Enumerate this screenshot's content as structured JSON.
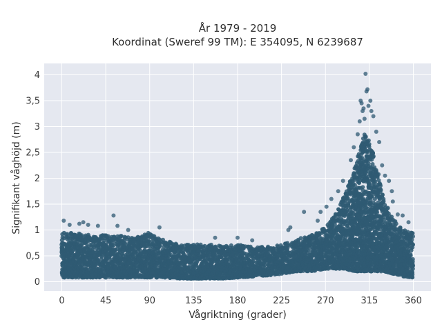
{
  "chart_data": {
    "type": "scatter",
    "title_lines": [
      "År 1979 - 2019",
      "Koordinat (Sweref 99 TM): E 354095, N 6239687"
    ],
    "xlabel": "Vågriktning (grader)",
    "ylabel": "Signifikant våghöjd (m)",
    "xlim": [
      -18,
      378
    ],
    "ylim": [
      -0.18,
      4.22
    ],
    "x_ticks": [
      0,
      45,
      90,
      135,
      180,
      225,
      270,
      315,
      360
    ],
    "x_tick_labels": [
      "0",
      "45",
      "90",
      "135",
      "180",
      "225",
      "270",
      "315",
      "360"
    ],
    "y_ticks": [
      0,
      0.5,
      1,
      1.5,
      2,
      2.5,
      3,
      3.5,
      4
    ],
    "y_tick_labels": [
      "0",
      "0,5",
      "1",
      "1,5",
      "2",
      "2,5",
      "3",
      "3,5",
      "4"
    ],
    "grid": true,
    "colors": {
      "marker": "#2f5a73",
      "plot_bg": "#e5e8f0",
      "grid": "#ffffff"
    },
    "envelope": {
      "x": [
        0,
        15,
        30,
        45,
        60,
        75,
        90,
        105,
        120,
        135,
        150,
        165,
        180,
        195,
        210,
        225,
        240,
        255,
        270,
        280,
        290,
        300,
        305,
        310,
        315,
        320,
        325,
        330,
        340,
        350,
        360
      ],
      "upper": [
        0.95,
        0.95,
        0.9,
        0.9,
        0.9,
        0.85,
        0.95,
        0.8,
        0.72,
        0.72,
        0.72,
        0.7,
        0.72,
        0.68,
        0.68,
        0.72,
        0.82,
        0.9,
        1.05,
        1.3,
        1.7,
        2.2,
        2.6,
        2.85,
        2.75,
        2.4,
        2.0,
        1.6,
        1.2,
        1.0,
        0.95
      ],
      "lower": [
        0.08,
        0.08,
        0.08,
        0.08,
        0.08,
        0.08,
        0.08,
        0.08,
        0.06,
        0.06,
        0.06,
        0.06,
        0.08,
        0.1,
        0.12,
        0.15,
        0.2,
        0.2,
        0.25,
        0.25,
        0.25,
        0.2,
        0.2,
        0.2,
        0.2,
        0.2,
        0.2,
        0.2,
        0.15,
        0.1,
        0.08
      ]
    },
    "outliers": [
      {
        "x": 2,
        "y": 1.18
      },
      {
        "x": 8,
        "y": 1.1
      },
      {
        "x": 18,
        "y": 1.12
      },
      {
        "x": 22,
        "y": 1.15
      },
      {
        "x": 27,
        "y": 1.1
      },
      {
        "x": 37,
        "y": 1.08
      },
      {
        "x": 53,
        "y": 1.28
      },
      {
        "x": 57,
        "y": 1.08
      },
      {
        "x": 68,
        "y": 1.0
      },
      {
        "x": 100,
        "y": 1.05
      },
      {
        "x": 157,
        "y": 0.85
      },
      {
        "x": 180,
        "y": 0.85
      },
      {
        "x": 195,
        "y": 0.8
      },
      {
        "x": 234,
        "y": 1.05
      },
      {
        "x": 232,
        "y": 1.0
      },
      {
        "x": 248,
        "y": 1.35
      },
      {
        "x": 262,
        "y": 1.18
      },
      {
        "x": 265,
        "y": 1.35
      },
      {
        "x": 271,
        "y": 1.45
      },
      {
        "x": 276,
        "y": 1.6
      },
      {
        "x": 283,
        "y": 1.75
      },
      {
        "x": 288,
        "y": 1.95
      },
      {
        "x": 296,
        "y": 2.35
      },
      {
        "x": 299,
        "y": 2.6
      },
      {
        "x": 303,
        "y": 2.85
      },
      {
        "x": 305,
        "y": 3.1
      },
      {
        "x": 306,
        "y": 3.5
      },
      {
        "x": 307,
        "y": 3.45
      },
      {
        "x": 308,
        "y": 3.3
      },
      {
        "x": 309,
        "y": 3.35
      },
      {
        "x": 310,
        "y": 3.15
      },
      {
        "x": 311,
        "y": 4.02
      },
      {
        "x": 312,
        "y": 3.68
      },
      {
        "x": 313,
        "y": 3.72
      },
      {
        "x": 314,
        "y": 3.4
      },
      {
        "x": 316,
        "y": 3.5
      },
      {
        "x": 317,
        "y": 3.3
      },
      {
        "x": 319,
        "y": 3.2
      },
      {
        "x": 322,
        "y": 2.9
      },
      {
        "x": 325,
        "y": 2.7
      },
      {
        "x": 328,
        "y": 2.25
      },
      {
        "x": 331,
        "y": 2.05
      },
      {
        "x": 335,
        "y": 1.95
      },
      {
        "x": 338,
        "y": 1.75
      },
      {
        "x": 339,
        "y": 1.55
      },
      {
        "x": 344,
        "y": 1.3
      },
      {
        "x": 349,
        "y": 1.28
      },
      {
        "x": 355,
        "y": 1.15
      }
    ]
  }
}
